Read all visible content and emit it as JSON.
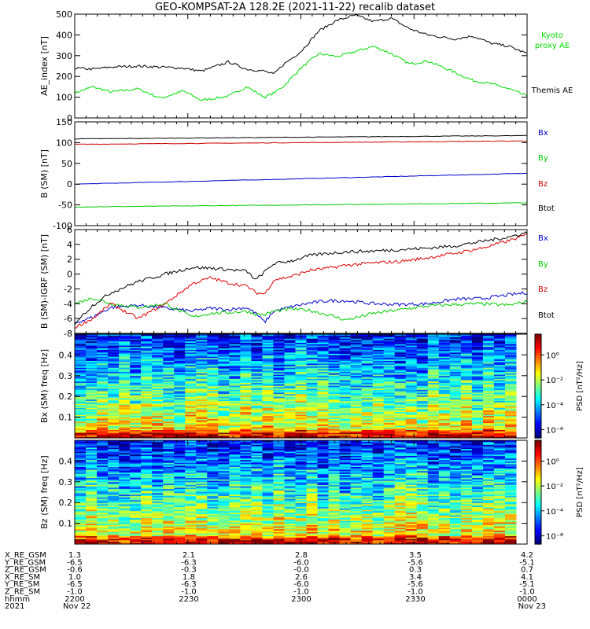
{
  "title": "GEO-KOMPSAT-2A 128.2E (2021-11-22) recalib dataset",
  "chart_data": [
    {
      "type": "line",
      "ylabel": "AE_index [nT]",
      "ylim": [
        0,
        500
      ],
      "yticks": [
        "0",
        "100",
        "200",
        "300",
        "400",
        "500"
      ],
      "x": [
        0,
        0.04,
        0.08,
        0.14,
        0.19,
        0.24,
        0.28,
        0.34,
        0.38,
        0.42,
        0.44,
        0.46,
        0.5,
        0.54,
        0.58,
        0.62,
        0.66,
        0.7,
        0.74,
        0.78,
        0.84,
        0.88,
        0.92,
        0.96,
        1.0
      ],
      "series": [
        {
          "name": "Kyoto proxy AE",
          "color": "#00dd00",
          "values": [
            120,
            150,
            125,
            140,
            95,
            130,
            85,
            105,
            150,
            100,
            120,
            150,
            240,
            310,
            295,
            320,
            345,
            310,
            260,
            275,
            220,
            180,
            165,
            140,
            105
          ]
        },
        {
          "name": "Themis AE",
          "color": "#000000",
          "values": [
            240,
            235,
            245,
            250,
            245,
            240,
            225,
            270,
            235,
            225,
            210,
            255,
            320,
            420,
            470,
            495,
            465,
            480,
            430,
            400,
            380,
            395,
            360,
            345,
            310
          ]
        }
      ]
    },
    {
      "type": "line",
      "ylabel": "B (SM) [nT]",
      "ylim": [
        -100,
        150
      ],
      "yticks": [
        "-100",
        "-50",
        "0",
        "50",
        "100",
        "150"
      ],
      "x": [
        0,
        1
      ],
      "series": [
        {
          "name": "Bx",
          "color": "#0000cc",
          "values": [
            0,
            26
          ]
        },
        {
          "name": "By",
          "color": "#00cc00",
          "values": [
            -55,
            -45
          ]
        },
        {
          "name": "Bz",
          "color": "#cc0000",
          "values": [
            96,
            104
          ]
        },
        {
          "name": "Btot",
          "color": "#000000",
          "values": [
            109,
            117
          ]
        }
      ]
    },
    {
      "type": "line",
      "ylabel": "B (SM)-IGRF (SM) [nT]",
      "ylim": [
        -8,
        6
      ],
      "yticks": [
        "-8",
        "-6",
        "-4",
        "-2",
        "0",
        "2",
        "4",
        "6"
      ],
      "x": [
        0,
        0.04,
        0.08,
        0.14,
        0.2,
        0.26,
        0.3,
        0.34,
        0.38,
        0.4,
        0.42,
        0.44,
        0.48,
        0.52,
        0.56,
        0.6,
        0.66,
        0.72,
        0.78,
        0.84,
        0.9,
        0.96,
        1.0
      ],
      "series": [
        {
          "name": "Bx",
          "color": "#0000cc",
          "values": [
            -6.6,
            -5.8,
            -4.5,
            -4.2,
            -4.6,
            -5.0,
            -4.6,
            -4.8,
            -4.5,
            -5.3,
            -6.5,
            -5.0,
            -4.4,
            -3.9,
            -3.6,
            -3.6,
            -4.0,
            -4.1,
            -4.0,
            -3.4,
            -3.3,
            -2.8,
            -2.5
          ]
        },
        {
          "name": "By",
          "color": "#00cc00",
          "values": [
            -4.0,
            -3.2,
            -4.0,
            -4.5,
            -4.0,
            -5.8,
            -5.3,
            -5.2,
            -5.0,
            -5.4,
            -5.5,
            -5.0,
            -4.7,
            -4.9,
            -5.5,
            -6.2,
            -5.3,
            -4.8,
            -4.3,
            -4.1,
            -4.0,
            -4.2,
            -3.7
          ]
        },
        {
          "name": "Bz",
          "color": "#dd0000",
          "values": [
            -7.2,
            -6.0,
            -4.0,
            -6.0,
            -4.0,
            -1.3,
            -0.5,
            -1.2,
            -1.6,
            -2.5,
            -2.7,
            -0.8,
            -0.3,
            0.5,
            0.8,
            1.2,
            1.5,
            1.7,
            2.2,
            2.8,
            3.5,
            4.5,
            5.3
          ]
        },
        {
          "name": "Btot",
          "color": "#000000",
          "values": [
            -6.6,
            -4.2,
            -2.5,
            -1.0,
            0.0,
            0.9,
            0.8,
            0.6,
            0.4,
            -0.8,
            0.3,
            1.4,
            1.8,
            2.5,
            2.8,
            3.0,
            3.1,
            3.3,
            3.5,
            3.8,
            4.4,
            5.0,
            5.6
          ]
        }
      ]
    },
    {
      "type": "heatmap",
      "ylabel": "Bx (SM) freq [Hz]",
      "yticks": [
        "0.1",
        "0.2",
        "0.3",
        "0.4"
      ],
      "colorbar_label": "PSD [nT²/Hz]",
      "colorbar_ticks": [
        "10⁰",
        "10⁻²",
        "10⁻⁴",
        "10⁻⁶"
      ]
    },
    {
      "type": "heatmap",
      "ylabel": "Bz (SM) freq [Hz]",
      "yticks": [
        "0.1",
        "0.2",
        "0.3",
        "0.4"
      ],
      "colorbar_label": "PSD [nT²/Hz]",
      "colorbar_ticks": [
        "10⁰",
        "10⁻²",
        "10⁻⁴",
        "10⁻⁶"
      ]
    }
  ],
  "legend": {
    "panel1": [
      "Kyoto",
      "proxy AE",
      "Themis AE"
    ],
    "panel2": [
      "Bx",
      "By",
      "Bz",
      "Btot"
    ],
    "panel3": [
      "Bx",
      "By",
      "Bz",
      "Btot"
    ]
  },
  "axis_table": {
    "row_labels": [
      "X_RE_GSM",
      "Y_RE_GSM",
      "Z_RE_GSM",
      "X_RE_SM",
      "Y_RE_SM",
      "Z_RE_SM",
      "hhmm",
      "2021"
    ],
    "columns": [
      [
        "1.3",
        "-6.5",
        "-0.6",
        "1.0",
        "-6.5",
        "-1.0",
        "2200",
        "Nov 22"
      ],
      [
        "2.1",
        "-6.3",
        "-0.3",
        "1.8",
        "-6.3",
        "-1.0",
        "2230",
        ""
      ],
      [
        "2.8",
        "-6.0",
        "-0.0",
        "2.6",
        "-6.0",
        "-1.0",
        "2300",
        ""
      ],
      [
        "3.5",
        "-5.6",
        "0.3",
        "3.4",
        "-5.6",
        "-1.0",
        "2330",
        ""
      ],
      [
        "4.2",
        "-5.1",
        "0.7",
        "4.1",
        "-5.1",
        "-1.0",
        "0000",
        "Nov 23"
      ]
    ]
  }
}
